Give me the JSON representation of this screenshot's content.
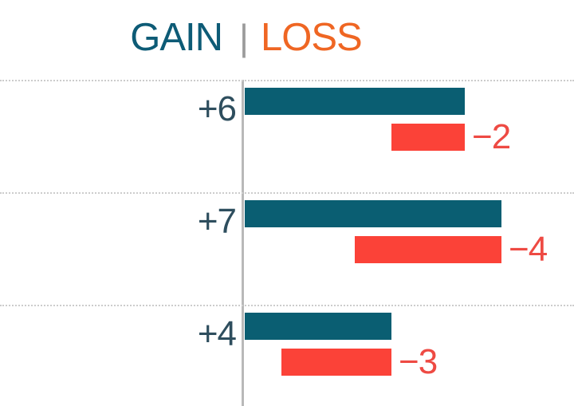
{
  "title": {
    "gain_label": "GAIN",
    "divider_glyph": "|",
    "loss_label": "LOSS"
  },
  "colors": {
    "background": "#ffffff",
    "gain_bar": "#0a5e72",
    "loss_bar": "#fb4238",
    "gain_title": "#0d5b76",
    "loss_title": "#ef6623",
    "title_divider": "#9b9b9b",
    "gain_value_label": "#2e4e5e",
    "loss_value_label": "#ee4a43",
    "axis_line": "#b9b9b9",
    "gridline": "#cccccc"
  },
  "chart_data": {
    "type": "bar",
    "orientation": "horizontal",
    "title": "GAIN | LOSS",
    "legend_position": "top",
    "grid": "dotted horizontal separators above each row",
    "baseline_value": 0,
    "xlim": [
      0,
      9
    ],
    "rows": [
      {
        "gain": 6,
        "gain_label": "+6",
        "loss": -2,
        "loss_label": "−2"
      },
      {
        "gain": 7,
        "gain_label": "+7",
        "loss": -4,
        "loss_label": "−4"
      },
      {
        "gain": 4,
        "gain_label": "+4",
        "loss": -3,
        "loss_label": "−3"
      }
    ],
    "series": [
      {
        "name": "GAIN",
        "values": [
          6,
          7,
          4
        ],
        "color": "#0a5e72"
      },
      {
        "name": "LOSS",
        "values": [
          -2,
          -4,
          -3
        ],
        "color": "#fb4238"
      }
    ],
    "loss_bar_anchor": "right edge aligned to end of gain bar"
  }
}
